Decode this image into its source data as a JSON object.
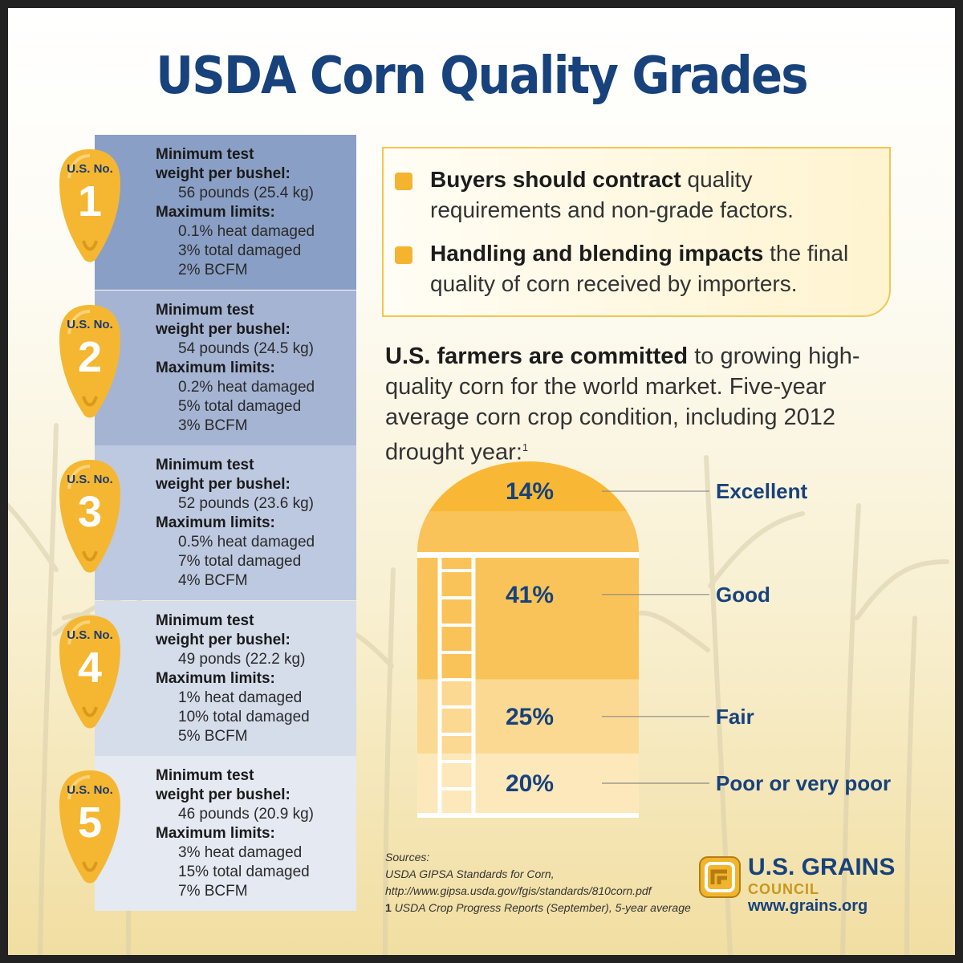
{
  "title": "USDA Corn Quality Grades",
  "grades": [
    {
      "label": "U.S. No.",
      "number": "1",
      "heading1": "Minimum test",
      "heading2": "weight per bushel:",
      "weight": "56 pounds (25.4 kg)",
      "limits_heading": "Maximum limits:",
      "heat": "0.1% heat damaged",
      "total": "3% total damaged",
      "bcfm": "2% BCFM",
      "bg": "#8a9fc5"
    },
    {
      "label": "U.S. No.",
      "number": "2",
      "heading1": "Minimum test",
      "heading2": "weight per bushel:",
      "weight": "54 pounds (24.5 kg)",
      "limits_heading": "Maximum limits:",
      "heat": "0.2% heat damaged",
      "total": "5% total damaged",
      "bcfm": "3% BCFM",
      "bg": "#a5b4d3"
    },
    {
      "label": "U.S. No.",
      "number": "3",
      "heading1": "Minimum test",
      "heading2": "weight per bushel:",
      "weight": "52 pounds (23.6 kg)",
      "limits_heading": "Maximum limits:",
      "heat": "0.5% heat damaged",
      "total": "7% total damaged",
      "bcfm": "4% BCFM",
      "bg": "#bdc9e0"
    },
    {
      "label": "U.S. No.",
      "number": "4",
      "heading1": "Minimum test",
      "heading2": "weight per bushel:",
      "weight": "49 ponds (22.2 kg)",
      "limits_heading": "Maximum limits:",
      "heat": "1% heat damaged",
      "total": "10% total damaged",
      "bcfm": "5% BCFM",
      "bg": "#d5ddeb"
    },
    {
      "label": "U.S. No.",
      "number": "5",
      "heading1": "Minimum test",
      "heading2": "weight per bushel:",
      "weight": "46 pounds (20.9 kg)",
      "limits_heading": "Maximum limits:",
      "heat": "3% heat damaged",
      "total": "15% total damaged",
      "bcfm": "7% BCFM",
      "bg": "#e4e9f2"
    }
  ],
  "callout": {
    "bullet1_bold": "Buyers should contract",
    "bullet1_rest": "quality requirements and non-grade factors.",
    "bullet2_bold": "Handling and blending impacts",
    "bullet2_rest": "the final quality of corn received by importers."
  },
  "committed": {
    "bold": "U.S. farmers are committed",
    "rest": "to growing high-quality corn for the world market. Five-year average corn crop condition, including 2012 drought year:",
    "footnote": "1"
  },
  "chart_data": {
    "type": "bar",
    "categories": [
      "Excellent",
      "Good",
      "Fair",
      "Poor or very poor"
    ],
    "values": [
      14,
      41,
      25,
      20
    ],
    "value_labels": [
      "14%",
      "41%",
      "25%",
      "20%"
    ],
    "title": "",
    "colors": [
      "#f8b835",
      "#f9c35a",
      "#fcd992",
      "#fde8bc"
    ]
  },
  "sources": {
    "heading": "Sources:",
    "line1": "USDA GIPSA Standards for Corn,",
    "line2": "http://www.gipsa.usda.gov/fgis/standards/810corn.pdf",
    "line3_mark": "1",
    "line3": "USDA Crop Progress Reports (September), 5-year average"
  },
  "logo": {
    "line1": "U.S. GRAINS",
    "line2": "COUNCIL",
    "line3": "www.grains.org"
  },
  "colors": {
    "title_blue": "#17427c",
    "kernel_yellow": "#f5b731",
    "accent_gold": "#c8971e"
  }
}
